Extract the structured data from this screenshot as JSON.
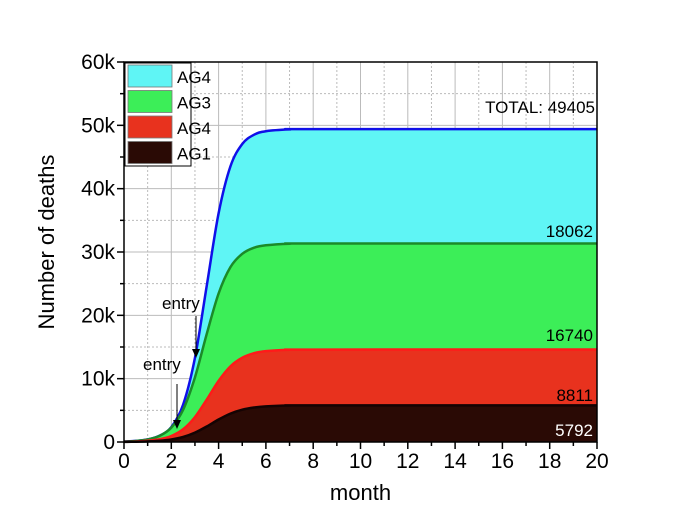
{
  "chart_data": {
    "type": "area",
    "stacked": true,
    "xlabel": "month",
    "ylabel": "Number of deaths",
    "xlim": [
      0,
      20
    ],
    "ylim": [
      0,
      60000
    ],
    "xticks": [
      "0",
      "2",
      "4",
      "6",
      "8",
      "10",
      "12",
      "14",
      "16",
      "18",
      "20"
    ],
    "yticks": [
      "0",
      "10k",
      "20k",
      "30k",
      "40k",
      "50k",
      "60k"
    ],
    "grid": true,
    "legend_position": "top-left",
    "total_label": "TOTAL: 49405",
    "x": [
      0,
      0.5,
      1,
      1.5,
      2,
      2.5,
      3,
      3.5,
      4,
      4.5,
      5,
      5.5,
      6,
      7,
      8,
      20
    ],
    "series": [
      {
        "name": "AG4",
        "legend": "AG4",
        "fill": "#5ff5f5",
        "line": "#1010e8",
        "end_label": "18062",
        "cumulative": [
          70,
          170,
          410,
          990,
          2350,
          5900,
          13290,
          24703,
          36113,
          43520,
          47060,
          48520,
          49073,
          49360,
          49400,
          49405
        ]
      },
      {
        "name": "AG3",
        "legend": "AG3",
        "fill": "#3cee58",
        "line": "#1c8a28",
        "end_label": "16740",
        "cumulative": [
          65,
          161,
          395,
          959,
          2270,
          5096,
          10210,
          17080,
          23450,
          27610,
          29710,
          30680,
          31060,
          31310,
          31340,
          31343
        ]
      },
      {
        "name": "AG4",
        "legend": "AG4",
        "fill": "#e8321e",
        "line": "#ff1a1a",
        "end_label": "8811",
        "cumulative": [
          36,
          83,
          189,
          430,
          948,
          2014,
          3928,
          6700,
          9650,
          11940,
          13300,
          14020,
          14340,
          14560,
          14595,
          14603
        ]
      },
      {
        "name": "AG1",
        "legend": "AG1",
        "fill": "#2a0a05",
        "line": "#140303",
        "end_label": "5792",
        "cumulative": [
          20,
          42,
          89,
          190,
          394,
          789,
          1474,
          2452,
          3550,
          4483,
          5103,
          5451,
          5630,
          5760,
          5785,
          5792
        ]
      }
    ],
    "annotations": [
      {
        "text": "entry",
        "x": 3.1,
        "y": 2500
      },
      {
        "text": "entry",
        "x": 2.3,
        "y": 1800
      }
    ]
  }
}
